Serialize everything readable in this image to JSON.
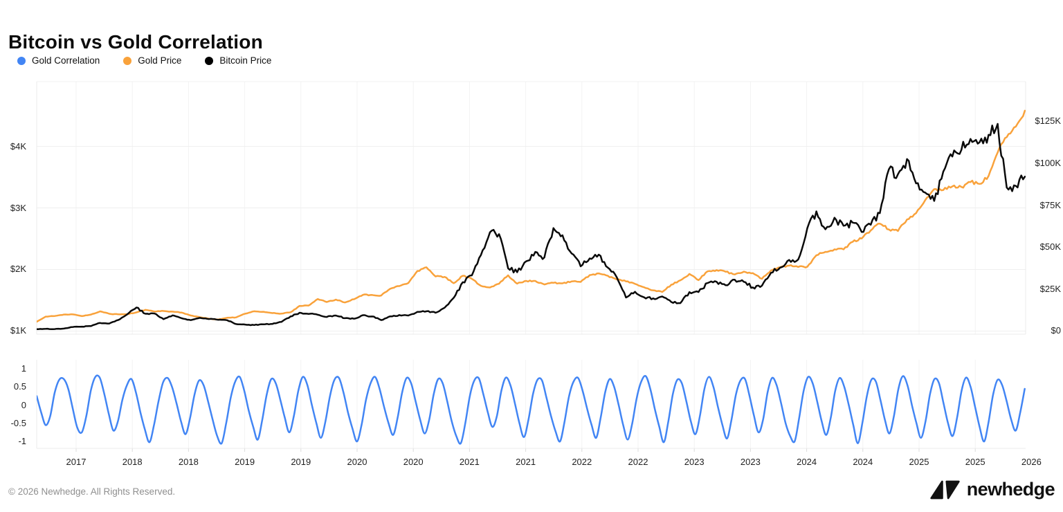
{
  "page": {
    "title": "Bitcoin vs Gold Correlation"
  },
  "legend": [
    {
      "label": "Gold Correlation",
      "color": "#4285F4"
    },
    {
      "label": "Gold Price",
      "color": "#F9A23B"
    },
    {
      "label": "Bitcoin Price",
      "color": "#000000"
    }
  ],
  "footer": {
    "copyright": "© 2026 Newhedge. All Rights Reserved.",
    "brand": "newhedge"
  },
  "chart_data": [
    {
      "id": "price-chart",
      "type": "line",
      "title": "Bitcoin vs Gold Correlation",
      "xlim": [
        2017.0,
        2026.09
      ],
      "x_tick_labels": [
        "2017",
        "2018",
        "2018",
        "2019",
        "2019",
        "2020",
        "2020",
        "2021",
        "2021",
        "2022",
        "2022",
        "2023",
        "2023",
        "2024",
        "2024",
        "2025",
        "2025",
        "2026"
      ],
      "left_axis": {
        "lim": [
          949,
          5051
        ],
        "ticks": [
          {
            "label": "$1K",
            "value": 1000
          },
          {
            "label": "$2K",
            "value": 2000
          },
          {
            "label": "$3K",
            "value": 3000
          },
          {
            "label": "$4K",
            "value": 4000
          }
        ]
      },
      "right_axis": {
        "lim": [
          -2.0,
          148.7
        ],
        "ticks": [
          {
            "label": "$0",
            "value": 0
          },
          {
            "label": "$25K",
            "value": 25
          },
          {
            "label": "$50K",
            "value": 50
          },
          {
            "label": "$75K",
            "value": 75
          },
          {
            "label": "$100K",
            "value": 100
          },
          {
            "label": "$125K",
            "value": 125
          }
        ]
      },
      "series": [
        {
          "name": "Gold Price",
          "axis": "left",
          "color": "#F9A23B",
          "x_start": 2017.0,
          "x_step": 0.08333,
          "values": [
            1151,
            1235,
            1245,
            1268,
            1270,
            1242,
            1268,
            1320,
            1280,
            1271,
            1275,
            1303,
            1345,
            1318,
            1325,
            1315,
            1300,
            1252,
            1224,
            1201,
            1187,
            1215,
            1222,
            1282,
            1321,
            1313,
            1292,
            1283,
            1305,
            1409,
            1414,
            1520,
            1472,
            1511,
            1464,
            1517,
            1589,
            1586,
            1577,
            1687,
            1730,
            1781,
            1976,
            2035,
            1886,
            1879,
            1777,
            1898,
            1848,
            1734,
            1708,
            1768,
            1905,
            1770,
            1814,
            1814,
            1757,
            1783,
            1775,
            1806,
            1797,
            1909,
            1937,
            1897,
            1837,
            1807,
            1766,
            1711,
            1661,
            1634,
            1753,
            1824,
            1928,
            1827,
            1969,
            1990,
            1963,
            1919,
            1965,
            1940,
            1849,
            1984,
            2036,
            2063,
            2040,
            2044,
            2230,
            2286,
            2327,
            2327,
            2448,
            2503,
            2635,
            2744,
            2651,
            2625,
            2812,
            2915,
            3125,
            3305,
            3290,
            3350,
            3340,
            3420,
            3390,
            3520,
            3900,
            4150,
            4320,
            4580
          ]
        },
        {
          "name": "Bitcoin Price",
          "axis": "right",
          "color": "#0a0a0a",
          "x_start": 2017.0,
          "x_step": 0.08333,
          "values": [
            0.97,
            1.18,
            1.07,
            1.35,
            2.3,
            2.48,
            2.87,
            4.7,
            4.35,
            6.45,
            9.9,
            13.9,
            10.2,
            10.35,
            6.95,
            9.25,
            7.5,
            6.4,
            7.75,
            7.0,
            6.6,
            6.35,
            4.02,
            3.74,
            3.46,
            3.85,
            4.1,
            5.3,
            8.55,
            10.8,
            10.1,
            9.6,
            8.3,
            9.15,
            7.55,
            7.2,
            9.35,
            8.55,
            6.44,
            8.65,
            9.45,
            9.14,
            11.35,
            11.65,
            10.78,
            13.8,
            19.7,
            29.0,
            33.1,
            45.2,
            58.8,
            57.7,
            37.3,
            35.0,
            41.5,
            47.1,
            43.8,
            61.3,
            57.0,
            46.2,
            38.5,
            43.2,
            45.5,
            37.7,
            31.8,
            19.9,
            23.3,
            20.0,
            19.4,
            20.5,
            17.2,
            16.55,
            23.1,
            23.15,
            28.5,
            29.25,
            27.2,
            30.5,
            29.25,
            25.9,
            26.95,
            34.65,
            37.7,
            42.3,
            42.6,
            61.2,
            71.3,
            60.6,
            67.5,
            62.7,
            64.6,
            59.0,
            63.3,
            70.2,
            96.4,
            93.4,
            102.5,
            88.0,
            82.5,
            77.5,
            95.0,
            104.0,
            108.0,
            114.5,
            112.5,
            117.0,
            123.5,
            85.5,
            86.5,
            92.0
          ]
        }
      ]
    },
    {
      "id": "correlation-chart",
      "type": "line",
      "xlim": [
        2017.0,
        2026.09
      ],
      "y_axis": {
        "lim": [
          -1.19,
          1.25
        ],
        "ticks": [
          {
            "label": "1",
            "value": 1
          },
          {
            "label": "0.5",
            "value": 0.5
          },
          {
            "label": "0",
            "value": 0
          },
          {
            "label": "-0.5",
            "value": -0.5
          },
          {
            "label": "-1",
            "value": -1
          }
        ]
      },
      "series": [
        {
          "name": "Gold Correlation",
          "axis": "y",
          "color": "#4285F4",
          "x_start": 2017.0,
          "x_step": 0.04147,
          "values": [
            0.25,
            -0.2,
            -0.55,
            -0.3,
            0.35,
            0.7,
            0.72,
            0.45,
            -0.1,
            -0.62,
            -0.75,
            -0.3,
            0.4,
            0.78,
            0.75,
            0.3,
            -0.25,
            -0.7,
            -0.45,
            0.15,
            0.55,
            0.72,
            0.35,
            -0.2,
            -0.68,
            -1.02,
            -0.55,
            0.1,
            0.62,
            0.75,
            0.5,
            0.05,
            -0.45,
            -0.8,
            -0.35,
            0.3,
            0.68,
            0.55,
            0.1,
            -0.4,
            -0.85,
            -1.05,
            -0.5,
            0.2,
            0.65,
            0.78,
            0.4,
            -0.15,
            -0.6,
            -0.95,
            -0.4,
            0.3,
            0.72,
            0.6,
            0.15,
            -0.35,
            -0.75,
            -0.3,
            0.4,
            0.78,
            0.55,
            0.0,
            -0.5,
            -0.9,
            -0.45,
            0.25,
            0.7,
            0.75,
            0.35,
            -0.2,
            -0.65,
            -1.0,
            -0.55,
            0.15,
            0.6,
            0.78,
            0.45,
            -0.05,
            -0.5,
            -0.82,
            -0.35,
            0.35,
            0.75,
            0.6,
            0.1,
            -0.4,
            -0.78,
            -0.4,
            0.3,
            0.72,
            0.6,
            0.1,
            -0.45,
            -0.85,
            -1.05,
            -0.5,
            0.25,
            0.68,
            0.74,
            0.3,
            -0.2,
            -0.6,
            -0.3,
            0.4,
            0.76,
            0.55,
            0.05,
            -0.5,
            -0.88,
            -0.4,
            0.3,
            0.7,
            0.68,
            0.2,
            -0.3,
            -0.72,
            -1.0,
            -0.45,
            0.25,
            0.65,
            0.75,
            0.4,
            -0.1,
            -0.55,
            -0.9,
            -0.35,
            0.35,
            0.72,
            0.5,
            0.0,
            -0.55,
            -0.95,
            -0.5,
            0.2,
            0.65,
            0.8,
            0.45,
            -0.1,
            -0.6,
            -1.02,
            -0.45,
            0.3,
            0.7,
            0.6,
            0.1,
            -0.45,
            -0.8,
            -0.3,
            0.45,
            0.78,
            0.5,
            -0.05,
            -0.55,
            -0.92,
            -0.4,
            0.3,
            0.68,
            0.72,
            0.25,
            -0.3,
            -0.75,
            -0.4,
            0.35,
            0.75,
            0.55,
            0.05,
            -0.5,
            -0.85,
            -1.0,
            -0.35,
            0.4,
            0.78,
            0.6,
            0.1,
            -0.45,
            -0.82,
            -0.35,
            0.4,
            0.75,
            0.5,
            0.0,
            -0.55,
            -1.05,
            -0.5,
            0.25,
            0.7,
            0.65,
            0.15,
            -0.4,
            -0.78,
            -0.3,
            0.45,
            0.8,
            0.55,
            0.0,
            -0.5,
            -0.9,
            -0.45,
            0.3,
            0.72,
            0.6,
            0.05,
            -0.5,
            -0.85,
            -0.35,
            0.4,
            0.76,
            0.5,
            -0.05,
            -0.6,
            -1.0,
            -0.45,
            0.3,
            0.7,
            0.55,
            0.1,
            -0.4,
            -0.7,
            -0.2,
            0.45
          ]
        }
      ]
    }
  ]
}
